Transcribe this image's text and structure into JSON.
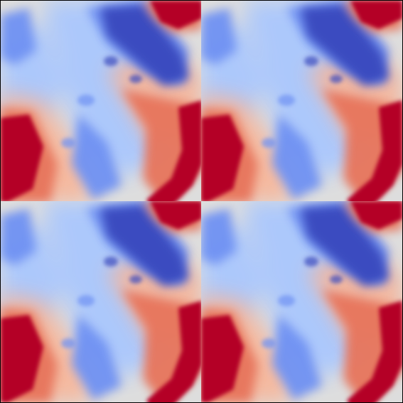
{
  "image": {
    "description_type": "field-visualization",
    "colormap": {
      "name": "coolwarm",
      "stops": [
        "#3b4cc0",
        "#6f92f3",
        "#aac7fd",
        "#dddddd",
        "#f7b599",
        "#e7745b",
        "#b40426"
      ]
    },
    "tiling": "2x2",
    "frame_color": "#000000"
  }
}
